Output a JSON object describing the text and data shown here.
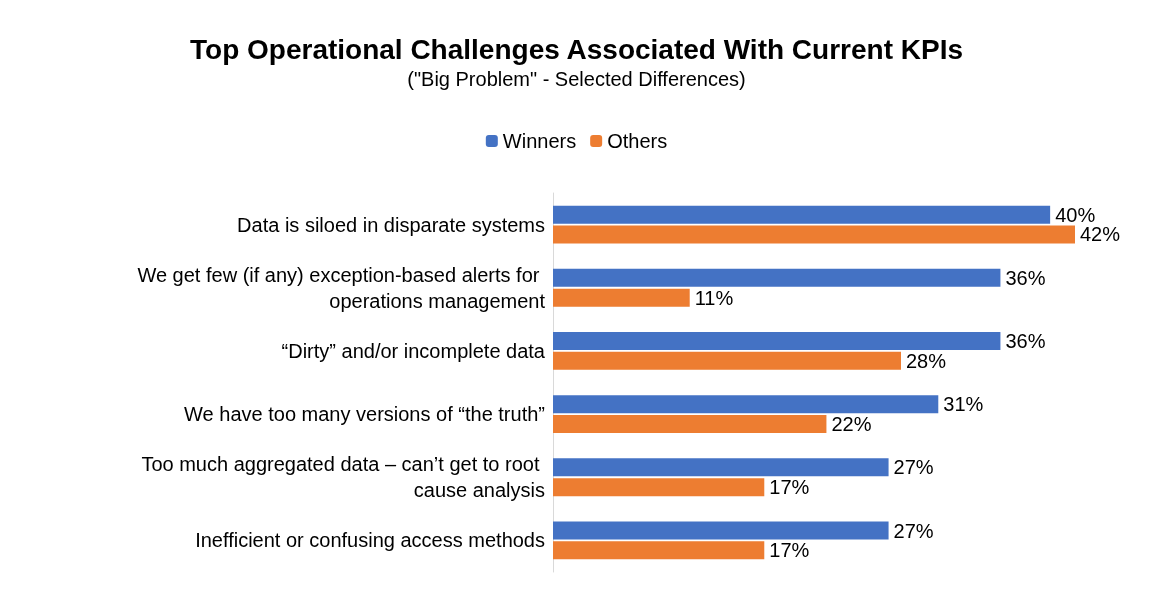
{
  "chart_data": {
    "type": "bar",
    "orientation": "horizontal",
    "title": "Top Operational Challenges Associated With Current KPIs",
    "subtitle": "(\"Big Problem\" - Selected Differences)",
    "categories": [
      "Data is siloed in disparate systems",
      "We get few (if any) exception-based alerts for operations management",
      "“Dirty” and/or incomplete data",
      "We have too many versions of “the truth”",
      "Too much aggregated data – can’t get to root cause analysis",
      "Inefficient or confusing access methods"
    ],
    "series": [
      {
        "name": "Winners",
        "color": "#4472c4",
        "values": [
          40,
          36,
          36,
          31,
          27,
          27
        ],
        "value_labels": [
          "40%",
          "36%",
          "36%",
          "31%",
          "27%",
          "27%"
        ]
      },
      {
        "name": "Others",
        "color": "#ed7d31",
        "values": [
          42,
          11,
          28,
          22,
          17,
          17
        ],
        "value_labels": [
          "42%",
          "11%",
          "28%",
          "22%",
          "17%",
          "17%"
        ]
      }
    ],
    "legend": "top"
  }
}
